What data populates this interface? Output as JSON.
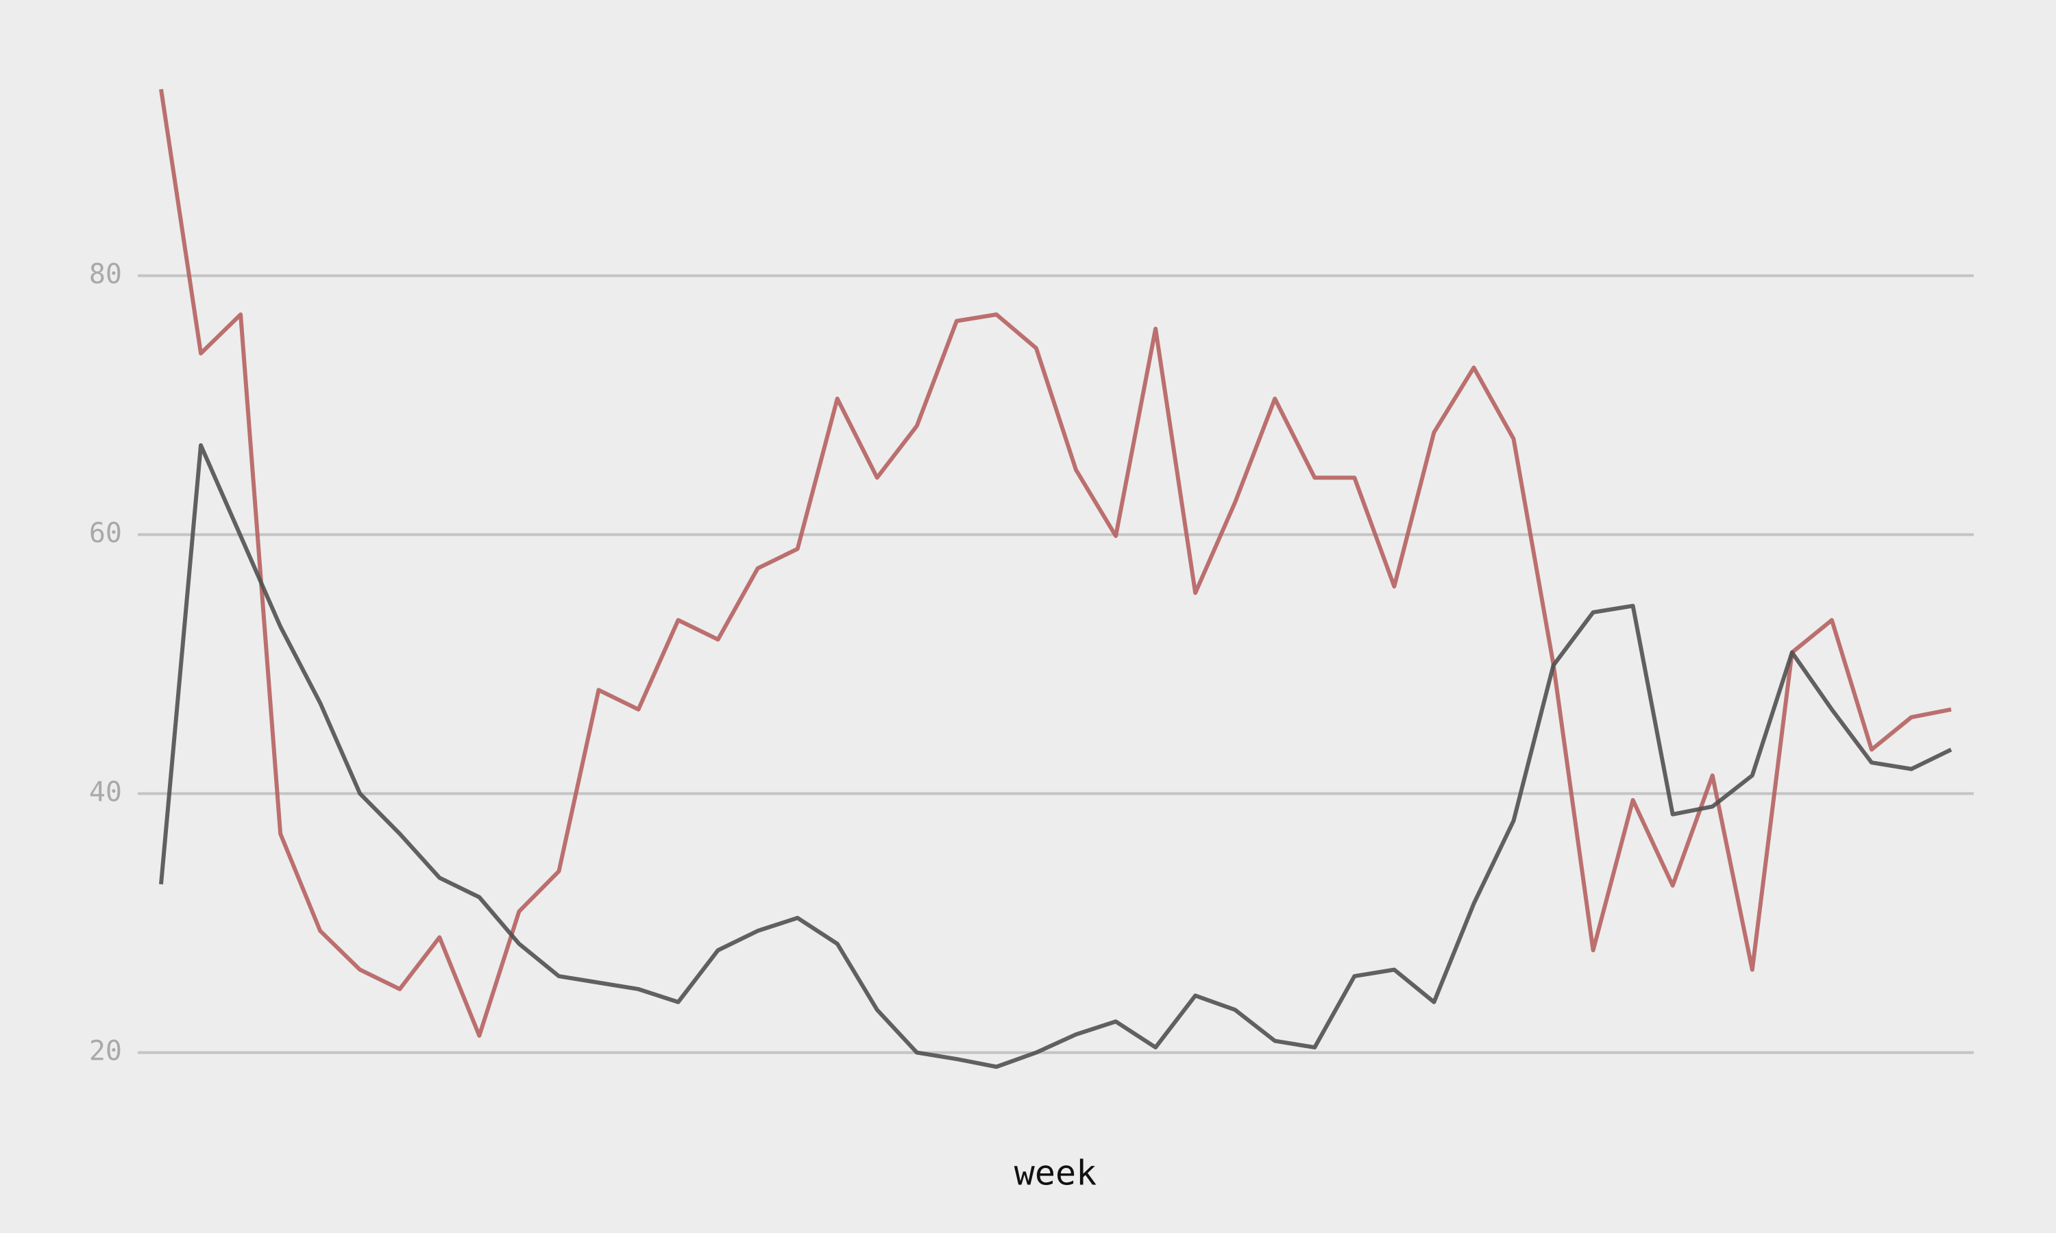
{
  "chart_data": {
    "type": "line",
    "x_label": "week",
    "ylim": [
      14,
      96
    ],
    "yticks": [
      20,
      40,
      60,
      80
    ],
    "grid": true,
    "series": [
      {
        "color": "#b5615f",
        "values": [
          94.4,
          74.0,
          77.0,
          36.9,
          29.4,
          26.4,
          24.9,
          28.9,
          21.3,
          30.9,
          34.0,
          48.0,
          46.5,
          53.4,
          51.9,
          57.4,
          58.9,
          70.5,
          64.4,
          68.4,
          76.5,
          77.0,
          74.4,
          65.0,
          59.9,
          75.9,
          55.5,
          62.5,
          70.5,
          64.4,
          64.4,
          56.0,
          67.9,
          72.9,
          67.4,
          50.0,
          27.9,
          39.5,
          32.9,
          41.4,
          26.4,
          50.9,
          53.4,
          43.4,
          45.9,
          46.5
        ]
      },
      {
        "color": "#505050",
        "values": [
          33.0,
          66.9,
          59.9,
          52.9,
          47.0,
          40.0,
          36.9,
          33.5,
          32.0,
          28.4,
          25.9,
          25.4,
          24.9,
          23.9,
          27.9,
          29.4,
          30.4,
          28.4,
          23.3,
          20.0,
          19.5,
          18.9,
          20.0,
          21.4,
          22.4,
          20.4,
          24.4,
          23.3,
          20.9,
          20.4,
          25.9,
          26.4,
          23.9,
          31.5,
          37.9,
          49.9,
          54.0,
          54.5,
          38.4,
          39.0,
          41.4,
          50.9,
          46.5,
          42.4,
          41.9,
          43.4
        ]
      }
    ]
  }
}
